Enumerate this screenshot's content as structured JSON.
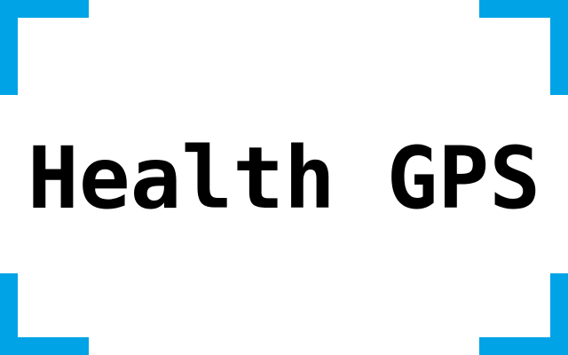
{
  "logo": {
    "text": "Health GPS",
    "accent_color": "#00a3e6",
    "text_color": "#000000"
  }
}
